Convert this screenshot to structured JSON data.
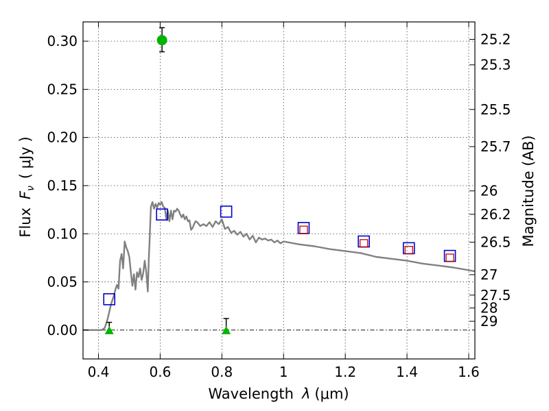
{
  "chart_data": {
    "type": "scatter",
    "xlabel_prefix": "Wavelength",
    "xlabel_symbol": "λ",
    "xlabel_unit": "(μm)",
    "ylabel_prefix": "Flux",
    "ylabel_symbol": "F",
    "ylabel_sub": "ν",
    "ylabel_unit": "( μJy )",
    "y2label": "Magnitude (AB)",
    "xlim": [
      0.35,
      1.62
    ],
    "ylim": [
      -0.03,
      0.32
    ],
    "grid": true,
    "x_ticks": [
      0.4,
      0.6,
      0.8,
      1.0,
      1.2,
      1.4,
      1.6
    ],
    "x_tick_labels": [
      "0.4",
      "0.6",
      "0.8",
      "1",
      "1.2",
      "1.4",
      "1.6"
    ],
    "y_ticks": [
      0.0,
      0.05,
      0.1,
      0.15,
      0.2,
      0.25,
      0.3
    ],
    "y_tick_labels": [
      "0.00",
      "0.05",
      "0.10",
      "0.15",
      "0.20",
      "0.25",
      "0.30"
    ],
    "mag_ticks": [
      {
        "label": "25.2",
        "flux": 0.3019
      },
      {
        "label": "25.3",
        "flux": 0.2754
      },
      {
        "label": "25.5",
        "flux": 0.2291
      },
      {
        "label": "25.7",
        "flux": 0.1905
      },
      {
        "label": "26",
        "flux": 0.1445
      },
      {
        "label": "26.2",
        "flux": 0.1202
      },
      {
        "label": "26.5",
        "flux": 0.0912
      },
      {
        "label": "27",
        "flux": 0.0575
      },
      {
        "label": "27.5",
        "flux": 0.0363
      },
      {
        "label": "28",
        "flux": 0.0229
      },
      {
        "label": "29",
        "flux": 0.0091
      }
    ],
    "model_sed": {
      "color": "#808080",
      "x": [
        0.35,
        0.41,
        0.42,
        0.43,
        0.44,
        0.45,
        0.455,
        0.46,
        0.465,
        0.47,
        0.475,
        0.48,
        0.485,
        0.49,
        0.495,
        0.5,
        0.505,
        0.51,
        0.515,
        0.52,
        0.525,
        0.53,
        0.535,
        0.54,
        0.545,
        0.55,
        0.555,
        0.56,
        0.563,
        0.566,
        0.57,
        0.575,
        0.58,
        0.585,
        0.59,
        0.595,
        0.6,
        0.605,
        0.61,
        0.615,
        0.62,
        0.625,
        0.63,
        0.635,
        0.64,
        0.645,
        0.65,
        0.655,
        0.66,
        0.665,
        0.67,
        0.675,
        0.68,
        0.685,
        0.69,
        0.695,
        0.7,
        0.705,
        0.71,
        0.715,
        0.72,
        0.73,
        0.74,
        0.75,
        0.76,
        0.77,
        0.78,
        0.79,
        0.8,
        0.81,
        0.82,
        0.83,
        0.84,
        0.85,
        0.86,
        0.87,
        0.88,
        0.89,
        0.9,
        0.91,
        0.92,
        0.93,
        0.94,
        0.95,
        0.96,
        0.97,
        0.98,
        0.99,
        1.0,
        1.05,
        1.1,
        1.15,
        1.2,
        1.25,
        1.3,
        1.35,
        1.4,
        1.45,
        1.5,
        1.55,
        1.62
      ],
      "y": [
        0.0,
        0.0,
        0.002,
        0.012,
        0.026,
        0.036,
        0.042,
        0.047,
        0.043,
        0.072,
        0.079,
        0.064,
        0.092,
        0.086,
        0.082,
        0.076,
        0.06,
        0.046,
        0.058,
        0.042,
        0.06,
        0.055,
        0.064,
        0.052,
        0.059,
        0.072,
        0.06,
        0.04,
        0.073,
        0.095,
        0.128,
        0.133,
        0.126,
        0.131,
        0.127,
        0.132,
        0.13,
        0.133,
        0.128,
        0.127,
        0.115,
        0.124,
        0.113,
        0.124,
        0.115,
        0.124,
        0.123,
        0.126,
        0.124,
        0.12,
        0.117,
        0.12,
        0.115,
        0.118,
        0.113,
        0.114,
        0.104,
        0.106,
        0.11,
        0.113,
        0.112,
        0.108,
        0.11,
        0.108,
        0.112,
        0.107,
        0.113,
        0.11,
        0.115,
        0.105,
        0.107,
        0.101,
        0.103,
        0.099,
        0.102,
        0.097,
        0.1,
        0.094,
        0.098,
        0.091,
        0.096,
        0.094,
        0.095,
        0.093,
        0.094,
        0.091,
        0.093,
        0.09,
        0.092,
        0.089,
        0.087,
        0.084,
        0.082,
        0.08,
        0.076,
        0.074,
        0.072,
        0.069,
        0.067,
        0.065,
        0.061
      ]
    },
    "model_photometry": {
      "color": "#0000cc",
      "points": [
        {
          "x": 0.435,
          "y": 0.032
        },
        {
          "x": 0.606,
          "y": 0.12
        },
        {
          "x": 0.814,
          "y": 0.123
        },
        {
          "x": 1.065,
          "y": 0.106
        },
        {
          "x": 1.26,
          "y": 0.092
        },
        {
          "x": 1.406,
          "y": 0.085
        },
        {
          "x": 1.539,
          "y": 0.077
        }
      ]
    },
    "observed_nir": {
      "color": "#cc0000",
      "points": [
        {
          "x": 1.065,
          "y": 0.104
        },
        {
          "x": 1.26,
          "y": 0.09
        },
        {
          "x": 1.406,
          "y": 0.083
        },
        {
          "x": 1.539,
          "y": 0.075
        }
      ]
    },
    "detection": {
      "color": "#00b400",
      "x": 0.606,
      "y": 0.301,
      "err_low": 0.289,
      "err_high": 0.314
    },
    "upper_limits": {
      "color": "#00b400",
      "points": [
        {
          "x": 0.435,
          "y": 0.0,
          "err_high": 0.008
        },
        {
          "x": 0.814,
          "y": 0.0,
          "err_high": 0.012
        }
      ]
    }
  }
}
